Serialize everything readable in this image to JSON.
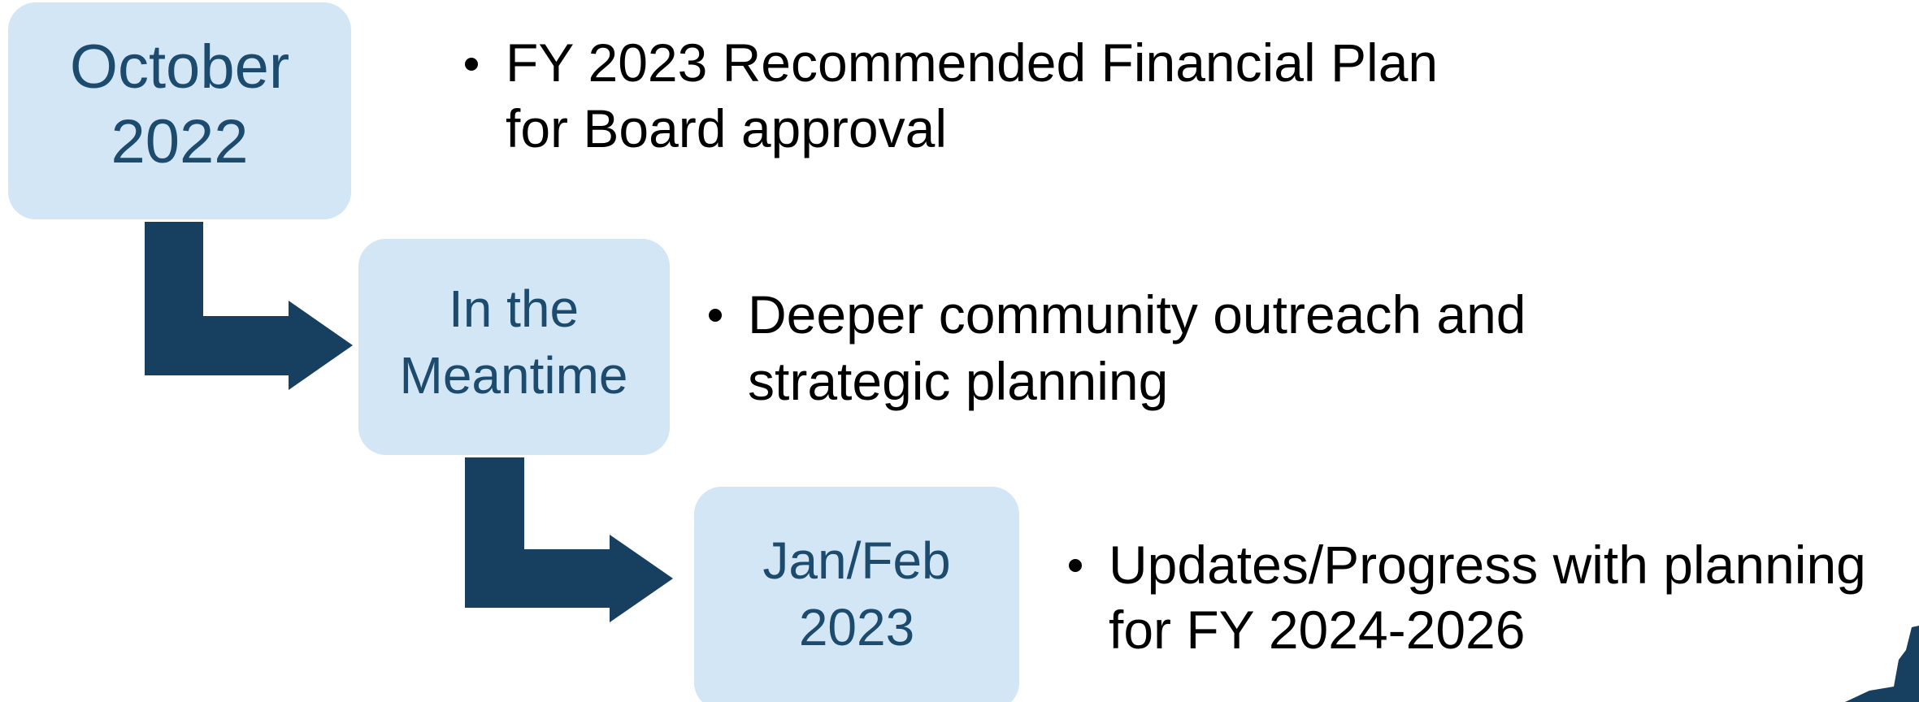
{
  "timeline": {
    "items": [
      {
        "date_lines": [
          "October",
          "2022"
        ],
        "bullet_lines": [
          "FY 2023 Recommended Financial Plan",
          "for Board approval"
        ]
      },
      {
        "date_lines": [
          "In the",
          "Meantime"
        ],
        "bullet_lines": [
          "Deeper community outreach and",
          "strategic planning"
        ]
      },
      {
        "date_lines": [
          "Jan/Feb",
          "2023"
        ],
        "bullet_lines": [
          "Updates/Progress with planning",
          "for FY 2024-2026"
        ]
      }
    ]
  }
}
